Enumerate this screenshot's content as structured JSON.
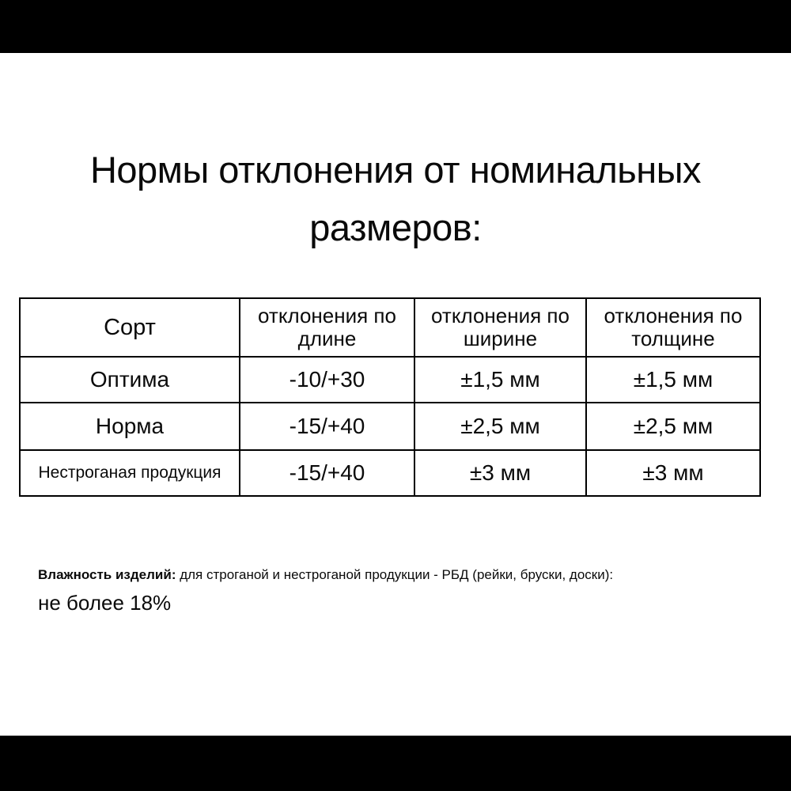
{
  "page": {
    "background_color": "#ffffff",
    "letterbox_color": "#000000",
    "text_color": "#0a0a0a"
  },
  "title": {
    "line1": "Нормы отклонения от номинальных",
    "line2": "размеров:"
  },
  "table": {
    "headers": [
      "Сорт",
      "отклонения по длине",
      "отклонения по ширине",
      "отклонения по толщине"
    ],
    "rows": [
      [
        "Оптима",
        "-10/+30",
        "±1,5 мм",
        "±1,5 мм"
      ],
      [
        "Норма",
        "-15/+40",
        "±2,5 мм",
        "±2,5 мм"
      ],
      [
        "Нестроганая продукция",
        "-15/+40",
        "±3 мм",
        "±3 мм"
      ]
    ]
  },
  "note": {
    "lead_bold": "Влажность изделий:",
    "rest": " для строганой и нестроганой продукции - РБД (рейки, бруски, доски):",
    "line2": "не более 18%"
  }
}
